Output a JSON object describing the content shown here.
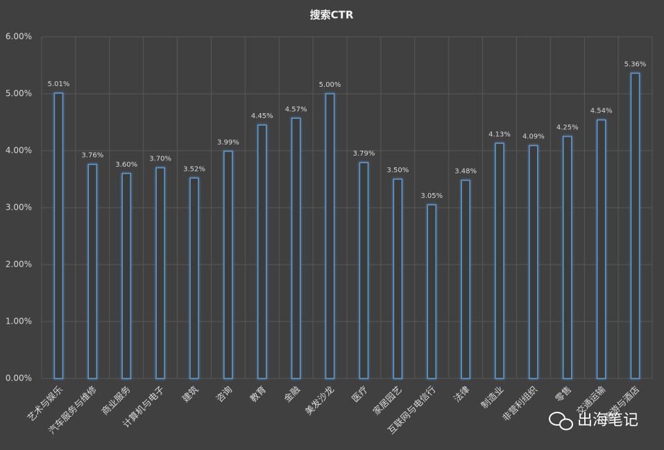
{
  "chart_data": {
    "type": "bar",
    "title": "搜索CTR",
    "categories": [
      "艺术与娱乐",
      "汽车服务与维修",
      "商业服务",
      "计算机与电子",
      "建筑",
      "咨询",
      "教育",
      "金融",
      "美发沙龙",
      "医疗",
      "家居园艺",
      "互联网与电信行",
      "法律",
      "制造业",
      "非营利组织",
      "零售",
      "交通运输",
      "旅游与酒店"
    ],
    "values": [
      5.01,
      3.76,
      3.6,
      3.7,
      3.52,
      3.99,
      4.45,
      4.57,
      5.0,
      3.79,
      3.5,
      3.05,
      3.48,
      4.13,
      4.09,
      4.25,
      4.54,
      5.36
    ],
    "value_labels": [
      "5.01%",
      "3.76%",
      "3.60%",
      "3.70%",
      "3.52%",
      "3.99%",
      "4.45%",
      "4.57%",
      "5.00%",
      "3.79%",
      "3.50%",
      "3.05%",
      "3.48%",
      "4.13%",
      "4.09%",
      "4.25%",
      "4.54%",
      "5.36%"
    ],
    "color": "#5b9bd5",
    "ylim": [
      0,
      6
    ],
    "yticks": [
      {
        "value": 0,
        "label": "0.00%"
      },
      {
        "value": 1,
        "label": "1.00%"
      },
      {
        "value": 2,
        "label": "2.00%"
      },
      {
        "value": 3,
        "label": "3.00%"
      },
      {
        "value": 4,
        "label": "4.00%"
      },
      {
        "value": 5,
        "label": "5.00%"
      },
      {
        "value": 6,
        "label": "6.00%"
      }
    ],
    "grid": true,
    "watermark": "出海笔记"
  }
}
